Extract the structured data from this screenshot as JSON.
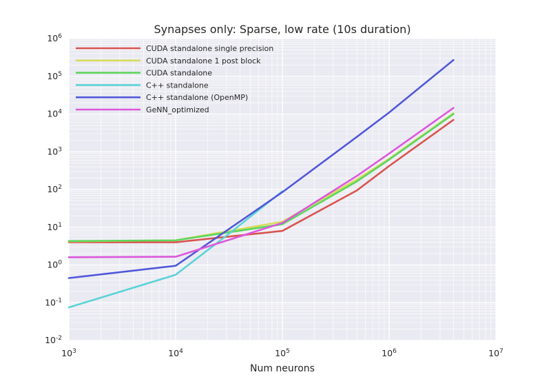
{
  "chart_data": {
    "type": "line",
    "title": "Synapses only: Sparse, low rate (10s duration)",
    "xlabel": "Num neurons",
    "ylabel": "",
    "xscale": "log",
    "yscale": "log",
    "xlim": [
      1000,
      10000000
    ],
    "ylim": [
      0.01,
      1000000
    ],
    "grid": true,
    "legend_position": "top-left",
    "x_ticks": [
      {
        "value": 1000,
        "base": "10",
        "exp": "3"
      },
      {
        "value": 10000,
        "base": "10",
        "exp": "4"
      },
      {
        "value": 100000,
        "base": "10",
        "exp": "5"
      },
      {
        "value": 1000000,
        "base": "10",
        "exp": "6"
      },
      {
        "value": 10000000,
        "base": "10",
        "exp": "7"
      }
    ],
    "y_ticks": [
      {
        "value": 0.01,
        "base": "10",
        "exp": "-2"
      },
      {
        "value": 0.1,
        "base": "10",
        "exp": "-1"
      },
      {
        "value": 1,
        "base": "10",
        "exp": "0"
      },
      {
        "value": 10,
        "base": "10",
        "exp": "1"
      },
      {
        "value": 100,
        "base": "10",
        "exp": "2"
      },
      {
        "value": 1000,
        "base": "10",
        "exp": "3"
      },
      {
        "value": 10000,
        "base": "10",
        "exp": "4"
      },
      {
        "value": 100000,
        "base": "10",
        "exp": "5"
      },
      {
        "value": 1000000,
        "base": "10",
        "exp": "6"
      }
    ],
    "series": [
      {
        "name": "CUDA standalone single precision",
        "color": "#d9534f",
        "x": [
          1000,
          10000,
          100000,
          500000,
          1000000,
          4000000
        ],
        "y": [
          4.0,
          4.0,
          8.0,
          95,
          420,
          7000
        ]
      },
      {
        "name": "CUDA standalone 1 post block",
        "color": "#d6dc5a",
        "x": [
          1000,
          10000,
          100000,
          500000,
          1000000,
          4000000
        ],
        "y": [
          4.2,
          4.5,
          14,
          185,
          650,
          10500
        ]
      },
      {
        "name": "CUDA standalone",
        "color": "#5cd65c",
        "x": [
          1000,
          10000,
          100000,
          500000,
          1000000,
          4000000
        ],
        "y": [
          4.3,
          4.5,
          12,
          165,
          620,
          10000
        ]
      },
      {
        "name": "C++ standalone",
        "color": "#5bd3d6",
        "x": [
          1000,
          10000,
          30000,
          100000
        ],
        "y": [
          0.075,
          0.55,
          6,
          90
        ]
      },
      {
        "name": "C++ standalone (OpenMP)",
        "color": "#5057d9",
        "x": [
          1000,
          10000,
          100000,
          500000,
          1000000,
          4000000
        ],
        "y": [
          0.45,
          0.95,
          85,
          2500,
          11000,
          270000
        ]
      },
      {
        "name": "GeNN_optimized",
        "color": "#dc57dc",
        "x": [
          1000,
          10000,
          100000,
          500000,
          1000000,
          4000000
        ],
        "y": [
          1.6,
          1.65,
          13,
          230,
          900,
          14500
        ]
      }
    ]
  }
}
